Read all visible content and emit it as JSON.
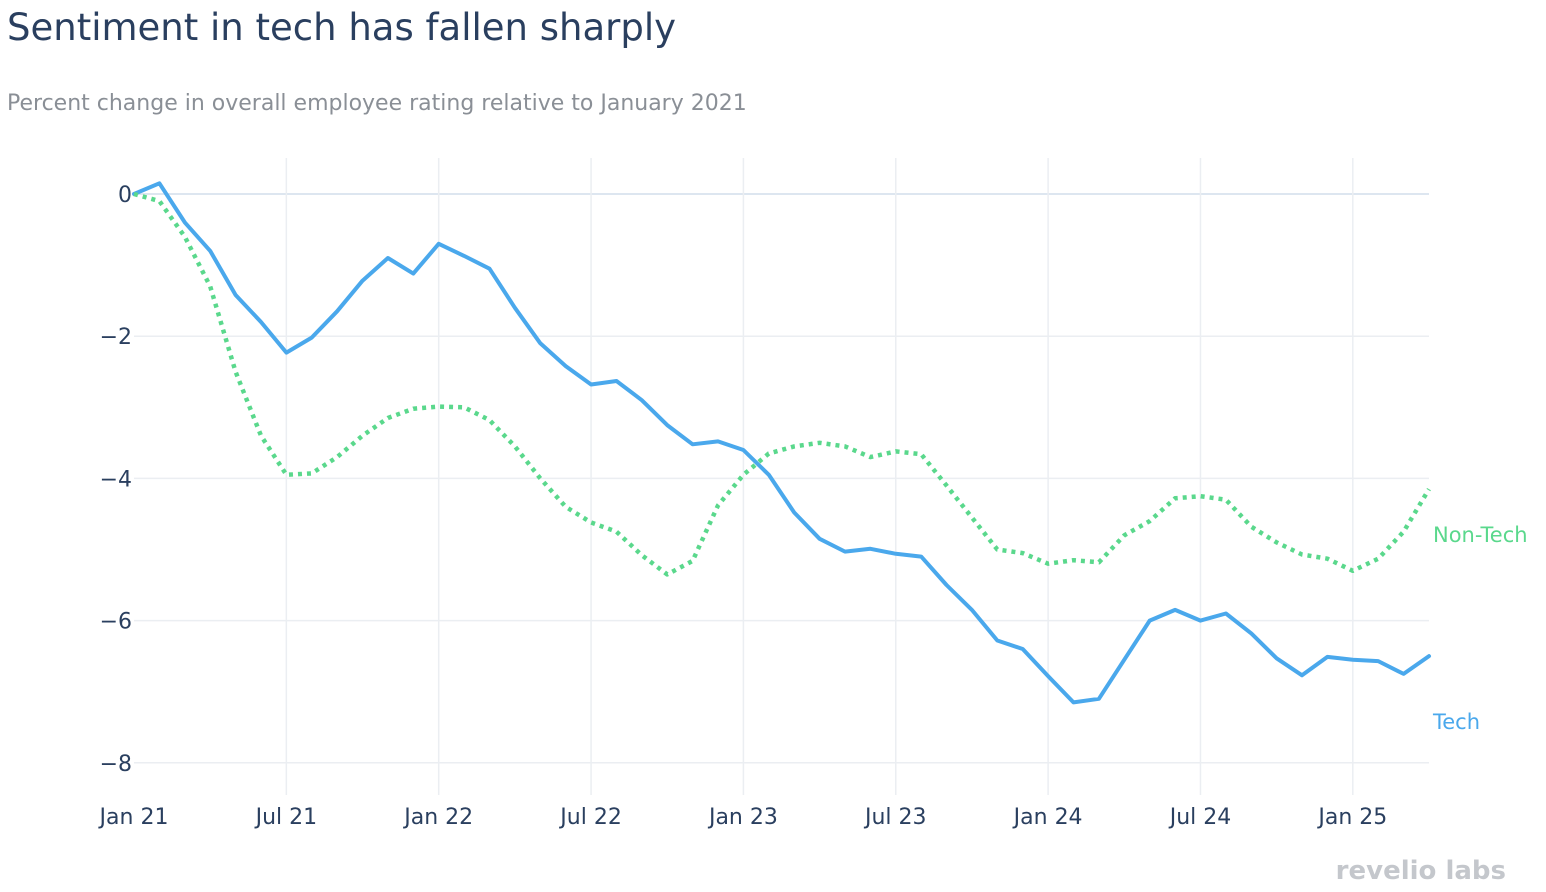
{
  "chart_data": {
    "type": "line",
    "title": "Sentiment in tech has fallen sharply",
    "subtitle": "Percent change in overall employee rating relative to January 2021",
    "xlabel": "",
    "ylabel": "",
    "x_tick_labels": [
      "Jan 21",
      "Jul 21",
      "Jan 22",
      "Jul 22",
      "Jan 23",
      "Jul 23",
      "Jan 24",
      "Jul 24",
      "Jan 25"
    ],
    "x_tick_months": [
      0,
      6,
      12,
      18,
      24,
      30,
      36,
      42,
      48
    ],
    "y_ticks": [
      0,
      -2,
      -4,
      -6,
      -8
    ],
    "y_tick_labels": [
      "0",
      "−2",
      "−4",
      "−6",
      "−8"
    ],
    "xlim": [
      0,
      51
    ],
    "ylim": [
      -8.5,
      0.5
    ],
    "grid": true,
    "x": [
      0,
      1,
      2,
      3,
      4,
      5,
      6,
      7,
      8,
      9,
      10,
      11,
      12,
      13,
      14,
      15,
      16,
      17,
      18,
      19,
      20,
      21,
      22,
      23,
      24,
      25,
      26,
      27,
      28,
      29,
      30,
      31,
      32,
      33,
      34,
      35,
      36,
      37,
      38,
      39,
      40,
      41,
      42,
      43,
      44,
      45,
      46,
      47,
      48,
      49,
      50,
      51
    ],
    "series": [
      {
        "name": "Tech",
        "label": "Tech",
        "color": "#4aa8ec",
        "style": "solid",
        "values": [
          0,
          0.15,
          -0.4,
          -0.8,
          -1.42,
          -1.8,
          -2.23,
          -2.02,
          -1.65,
          -1.22,
          -0.9,
          -1.12,
          -0.7,
          -0.87,
          -1.05,
          -1.6,
          -2.1,
          -2.42,
          -2.68,
          -2.63,
          -2.9,
          -3.25,
          -3.52,
          -3.48,
          -3.6,
          -3.95,
          -4.48,
          -4.85,
          -5.03,
          -4.99,
          -5.06,
          -5.1,
          -5.5,
          -5.85,
          -6.28,
          -6.4,
          -6.78,
          -7.15,
          -7.1,
          -6.55,
          -6.0,
          -5.85,
          -6.0,
          -5.9,
          -6.18,
          -6.53,
          -6.77,
          -6.51,
          -6.55,
          -6.57,
          -6.75,
          -6.5
        ]
      },
      {
        "name": "Non-Tech",
        "label": "Non-Tech",
        "color": "#5ad88c",
        "style": "dotted",
        "values": [
          0,
          -0.1,
          -0.6,
          -1.3,
          -2.5,
          -3.4,
          -3.95,
          -3.93,
          -3.7,
          -3.4,
          -3.15,
          -3.02,
          -2.99,
          -3.0,
          -3.18,
          -3.55,
          -4.0,
          -4.4,
          -4.62,
          -4.75,
          -5.08,
          -5.35,
          -5.16,
          -4.38,
          -3.95,
          -3.65,
          -3.55,
          -3.5,
          -3.55,
          -3.7,
          -3.62,
          -3.66,
          -4.1,
          -4.55,
          -5.0,
          -5.05,
          -5.2,
          -5.15,
          -5.18,
          -4.8,
          -4.6,
          -4.28,
          -4.25,
          -4.3,
          -4.68,
          -4.9,
          -5.07,
          -5.13,
          -5.3,
          -5.13,
          -4.75,
          -4.15
        ]
      }
    ]
  },
  "branding": {
    "logo_text": "revelio labs"
  }
}
